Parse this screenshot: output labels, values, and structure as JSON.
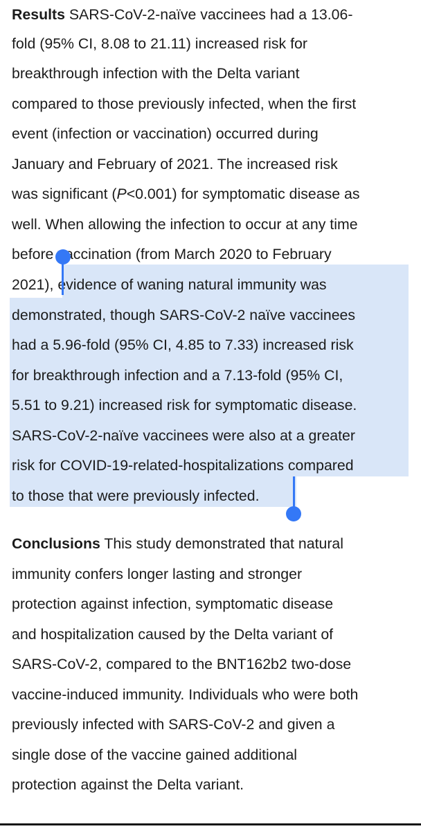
{
  "results": {
    "label": "Results",
    "lines": [
      " SARS-CoV-2-naïve vaccinees had a 13.06-",
      "fold (95% CI, 8.08 to 21.11) increased risk for",
      "breakthrough infection with the Delta variant",
      "compared to those previously infected, when the first",
      "event (infection or vaccination) occurred during",
      "January and February of 2021. The increased risk",
      "was significant (",
      "P",
      "<0.001) for symptomatic disease as",
      "well. When allowing the infection to occur at any time",
      "before vaccination (from March 2020 to February",
      "2021), ",
      "evidence of waning natural immunity was",
      "demonstrated, though SARS-CoV-2 naïve vaccinees",
      "had a 5.96-fold (95% CI, 4.85 to 7.33) increased risk",
      "for breakthrough infection and a 7.13-fold (95% CI,",
      "5.51 to 9.21) increased risk for symptomatic disease.",
      "SARS-CoV-2-naïve vaccinees were also at a greater",
      "risk for COVID-19-related-hospitalizations compared",
      "to those that were previously infected."
    ]
  },
  "conclusions": {
    "label": "Conclusions",
    "lines": [
      " This study demonstrated that natural",
      "immunity confers longer lasting and stronger",
      "protection against infection, symptomatic disease",
      "and hospitalization caused by the Delta variant of",
      "SARS-CoV-2, compared to the BNT162b2 two-dose",
      "vaccine-induced immunity. Individuals who were both",
      "previously infected with SARS-CoV-2 and given a",
      "single dose of the vaccine gained additional",
      "protection against the Delta variant."
    ]
  },
  "colors": {
    "selection": "#d9e6f8",
    "handle": "#3478f6",
    "text": "#1b1b1b"
  }
}
